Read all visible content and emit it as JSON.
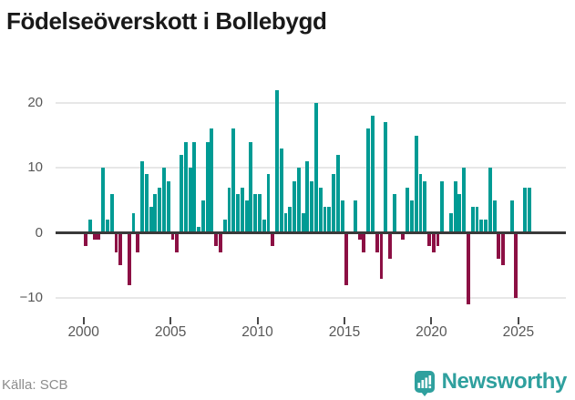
{
  "title": "Födelseöverskott i Bollebygd",
  "source": "Källa: SCB",
  "brand": {
    "name": "Newsworthy"
  },
  "colors": {
    "positive_bar": "#009b94",
    "negative_bar": "#8c1044",
    "zero_axis": "#3a3a3a",
    "gridline": "#e7e7e7",
    "axis_label": "#575757",
    "source_text": "#8c8c8c",
    "brand_teal": "#2fa09e",
    "title_text": "#191919"
  },
  "chart_data": {
    "type": "bar",
    "title": "Födelseöverskott i Bollebygd",
    "unit": "persons per quarter",
    "frequency": "quarterly",
    "start": "2000Q1",
    "end": "2025Q3",
    "values": [
      -2,
      2,
      -1,
      -1,
      10,
      2,
      6,
      -3,
      -5,
      0,
      -8,
      3,
      -3,
      11,
      9,
      4,
      6,
      7,
      10,
      8,
      -1,
      -3,
      12,
      14,
      10,
      14,
      1,
      5,
      14,
      16,
      -2,
      -3,
      2,
      7,
      16,
      6,
      7,
      5,
      14,
      6,
      6,
      2,
      9,
      -2,
      22,
      13,
      3,
      4,
      8,
      10,
      3,
      11,
      8,
      20,
      7,
      4,
      4,
      9,
      12,
      5,
      -8,
      0,
      5,
      -1,
      -3,
      16,
      18,
      -3,
      -7,
      17,
      -4,
      6,
      0,
      -1,
      7,
      5,
      15,
      9,
      8,
      -2,
      -3,
      -2,
      8,
      0,
      3,
      8,
      6,
      10,
      -11,
      4,
      4,
      2,
      2,
      10,
      5,
      -4,
      -5,
      0,
      5,
      -10,
      0,
      7,
      7
    ],
    "x_ticks": [
      {
        "year": 2000,
        "label": "2000"
      },
      {
        "year": 2005,
        "label": "2005"
      },
      {
        "year": 2010,
        "label": "2010"
      },
      {
        "year": 2015,
        "label": "2015"
      },
      {
        "year": 2020,
        "label": "2020"
      },
      {
        "year": 2025,
        "label": "2025"
      }
    ],
    "y_ticks": [
      {
        "value": 20,
        "label": "20"
      },
      {
        "value": 10,
        "label": "10"
      },
      {
        "value": 0,
        "label": "0"
      },
      {
        "value": -10,
        "label": "−10"
      }
    ],
    "ylim": [
      -12,
      23
    ],
    "grid": "horizontal",
    "legend": "none",
    "positive_color": "#009b94",
    "negative_color": "#8c1044"
  }
}
